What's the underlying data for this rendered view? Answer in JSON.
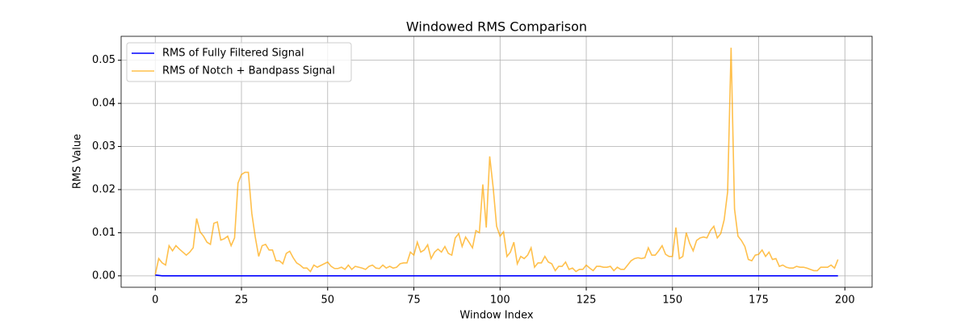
{
  "chart_data": {
    "type": "line",
    "title": "Windowed RMS Comparison",
    "x_label": "Window Index",
    "y_label": "RMS Value",
    "x": [
      0,
      1,
      2,
      3,
      4,
      5,
      6,
      7,
      8,
      9,
      10,
      11,
      12,
      13,
      14,
      15,
      16,
      17,
      18,
      19,
      20,
      21,
      22,
      23,
      24,
      25,
      26,
      27,
      28,
      29,
      30,
      31,
      32,
      33,
      34,
      35,
      36,
      37,
      38,
      39,
      40,
      41,
      42,
      43,
      44,
      45,
      46,
      47,
      48,
      49,
      50,
      51,
      52,
      53,
      54,
      55,
      56,
      57,
      58,
      59,
      60,
      61,
      62,
      63,
      64,
      65,
      66,
      67,
      68,
      69,
      70,
      71,
      72,
      73,
      74,
      75,
      76,
      77,
      78,
      79,
      80,
      81,
      82,
      83,
      84,
      85,
      86,
      87,
      88,
      89,
      90,
      91,
      92,
      93,
      94,
      95,
      96,
      97,
      98,
      99,
      100,
      101,
      102,
      103,
      104,
      105,
      106,
      107,
      108,
      109,
      110,
      111,
      112,
      113,
      114,
      115,
      116,
      117,
      118,
      119,
      120,
      121,
      122,
      123,
      124,
      125,
      126,
      127,
      128,
      129,
      130,
      131,
      132,
      133,
      134,
      135,
      136,
      137,
      138,
      139,
      140,
      141,
      142,
      143,
      144,
      145,
      146,
      147,
      148,
      149,
      150,
      151,
      152,
      153,
      154,
      155,
      156,
      157,
      158,
      159,
      160,
      161,
      162,
      163,
      164,
      165,
      166,
      167,
      168,
      169,
      170,
      171,
      172,
      173,
      174,
      175,
      176,
      177,
      178,
      179,
      180,
      181,
      182,
      183,
      184,
      185,
      186,
      187,
      188,
      189,
      190,
      191,
      192,
      193,
      194,
      195,
      196,
      197,
      198
    ],
    "series": [
      {
        "name": "RMS of Fully Filtered Signal",
        "color": "#0000ff",
        "alpha": 1,
        "values": [
          0.0002,
          0.0001,
          0,
          0,
          0,
          0,
          0,
          0,
          0,
          0,
          0,
          0,
          0,
          0,
          0,
          0,
          0,
          0,
          0,
          0,
          0,
          0,
          0,
          0,
          0,
          0,
          0,
          0,
          0,
          0,
          0,
          0,
          0,
          0,
          0,
          0,
          0,
          0,
          0,
          0,
          0,
          0,
          0,
          0,
          0,
          0,
          0,
          0,
          0,
          0,
          0,
          0,
          0,
          0,
          0,
          0,
          0,
          0,
          0,
          0,
          0,
          0,
          0,
          0,
          0,
          0,
          0,
          0,
          0,
          0,
          0,
          0,
          0,
          0,
          0,
          0,
          0,
          0,
          0,
          0,
          0,
          0,
          0,
          0,
          0,
          0,
          0,
          0,
          0,
          0,
          0,
          0,
          0,
          0,
          0,
          0,
          0,
          0,
          0,
          0,
          0,
          0,
          0,
          0,
          0,
          0,
          0,
          0,
          0,
          0,
          0,
          0,
          0,
          0,
          0,
          0,
          0,
          0,
          0,
          0,
          0,
          0,
          0,
          0,
          0,
          0,
          0,
          0,
          0,
          0,
          0,
          0,
          0,
          0,
          0,
          0,
          0,
          0,
          0,
          0,
          0,
          0,
          0,
          0,
          0,
          0,
          0,
          0,
          0,
          0,
          0,
          0,
          0,
          0,
          0,
          0,
          0,
          0,
          0,
          0,
          0,
          0,
          0,
          0,
          0,
          0,
          0,
          0,
          0,
          0,
          0,
          0,
          0,
          0,
          0,
          0,
          0,
          0,
          0,
          0,
          0,
          0,
          0,
          0,
          0,
          0,
          0,
          0,
          0,
          0,
          0,
          0,
          0,
          0,
          0,
          0,
          0,
          0,
          0
        ]
      },
      {
        "name": "RMS of Notch + Bandpass Signal",
        "color": "#ffa500",
        "alpha": 0.7,
        "values": [
          0.0003,
          0.004,
          0.003,
          0.0025,
          0.007,
          0.0058,
          0.007,
          0.0062,
          0.0055,
          0.0048,
          0.0055,
          0.0065,
          0.0133,
          0.0102,
          0.0092,
          0.0078,
          0.0073,
          0.0122,
          0.0125,
          0.0083,
          0.0086,
          0.0092,
          0.007,
          0.0088,
          0.0215,
          0.0235,
          0.024,
          0.024,
          0.0145,
          0.009,
          0.0045,
          0.007,
          0.0073,
          0.006,
          0.006,
          0.0035,
          0.0035,
          0.0028,
          0.0052,
          0.0057,
          0.0042,
          0.003,
          0.0025,
          0.0018,
          0.0018,
          0.001,
          0.0025,
          0.002,
          0.0024,
          0.0028,
          0.0032,
          0.0022,
          0.0017,
          0.0017,
          0.002,
          0.0015,
          0.0025,
          0.0015,
          0.0022,
          0.002,
          0.0018,
          0.0015,
          0.0022,
          0.0025,
          0.0018,
          0.0017,
          0.0025,
          0.0018,
          0.0022,
          0.0018,
          0.002,
          0.0028,
          0.003,
          0.003,
          0.0055,
          0.0048,
          0.0078,
          0.0055,
          0.006,
          0.0072,
          0.004,
          0.0055,
          0.0062,
          0.0055,
          0.0068,
          0.0052,
          0.0048,
          0.0088,
          0.0098,
          0.0068,
          0.009,
          0.0078,
          0.0065,
          0.0105,
          0.01,
          0.0212,
          0.0112,
          0.0277,
          0.0205,
          0.0115,
          0.0092,
          0.0102,
          0.0045,
          0.0055,
          0.0078,
          0.0028,
          0.0045,
          0.004,
          0.0048,
          0.0065,
          0.002,
          0.003,
          0.003,
          0.0045,
          0.0032,
          0.0028,
          0.0012,
          0.0022,
          0.0022,
          0.0032,
          0.0015,
          0.0018,
          0.001,
          0.0015,
          0.0015,
          0.0025,
          0.0018,
          0.0012,
          0.0022,
          0.0022,
          0.002,
          0.002,
          0.0022,
          0.0012,
          0.002,
          0.0015,
          0.0015,
          0.0025,
          0.0035,
          0.004,
          0.0042,
          0.004,
          0.0042,
          0.0065,
          0.0048,
          0.0048,
          0.0058,
          0.007,
          0.005,
          0.0045,
          0.0045,
          0.0112,
          0.004,
          0.0045,
          0.01,
          0.0075,
          0.0058,
          0.0082,
          0.0088,
          0.009,
          0.0088,
          0.0105,
          0.0115,
          0.0088,
          0.0098,
          0.013,
          0.0195,
          0.0529,
          0.0155,
          0.0092,
          0.0082,
          0.0068,
          0.0038,
          0.0035,
          0.0048,
          0.005,
          0.006,
          0.0045,
          0.0055,
          0.0038,
          0.004,
          0.0022,
          0.0025,
          0.002,
          0.0018,
          0.0018,
          0.0022,
          0.002,
          0.002,
          0.0018,
          0.0015,
          0.0012,
          0.0012,
          0.002,
          0.002,
          0.002,
          0.0025,
          0.0018,
          0.0038
        ]
      }
    ],
    "xlim": [
      -9.9,
      207.9
    ],
    "xticks": [
      0,
      25,
      50,
      75,
      100,
      125,
      150,
      175,
      200
    ],
    "ylim": [
      -0.00265,
      0.05555
    ],
    "yticks": [
      {
        "value": 0,
        "label": "0.00"
      },
      0.01,
      0.02,
      0.03,
      0.04,
      0.05
    ],
    "grid": true,
    "legend": "upper left"
  }
}
